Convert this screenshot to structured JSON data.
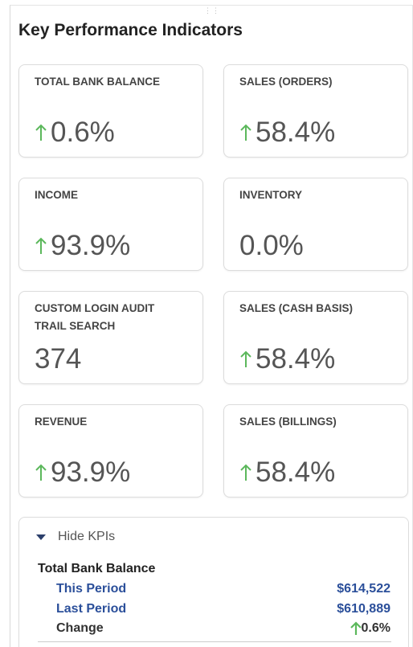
{
  "header": {
    "title": "Key Performance Indicators"
  },
  "kpis": [
    {
      "label": "TOTAL BANK BALANCE",
      "value": "0.6%"
    },
    {
      "label": "SALES (ORDERS)",
      "value": "58.4%"
    },
    {
      "label": "INCOME",
      "value": "93.9%"
    },
    {
      "label": "INVENTORY",
      "value": "0.0%"
    },
    {
      "label": "CUSTOM LOGIN AUDIT TRAIL SEARCH",
      "value": "374"
    },
    {
      "label": "SALES (CASH BASIS)",
      "value": "58.4%"
    },
    {
      "label": "REVENUE",
      "value": "93.9%"
    },
    {
      "label": "SALES (BILLINGS)",
      "value": "58.4%"
    }
  ],
  "details": {
    "toggle": "Hide KPIs",
    "section": "Total Bank Balance",
    "rows": [
      {
        "label": "This Period",
        "value": "$614,522"
      },
      {
        "label": "Last Period",
        "value": "$610,889"
      },
      {
        "label": "Change",
        "value": "0.6%"
      }
    ]
  }
}
